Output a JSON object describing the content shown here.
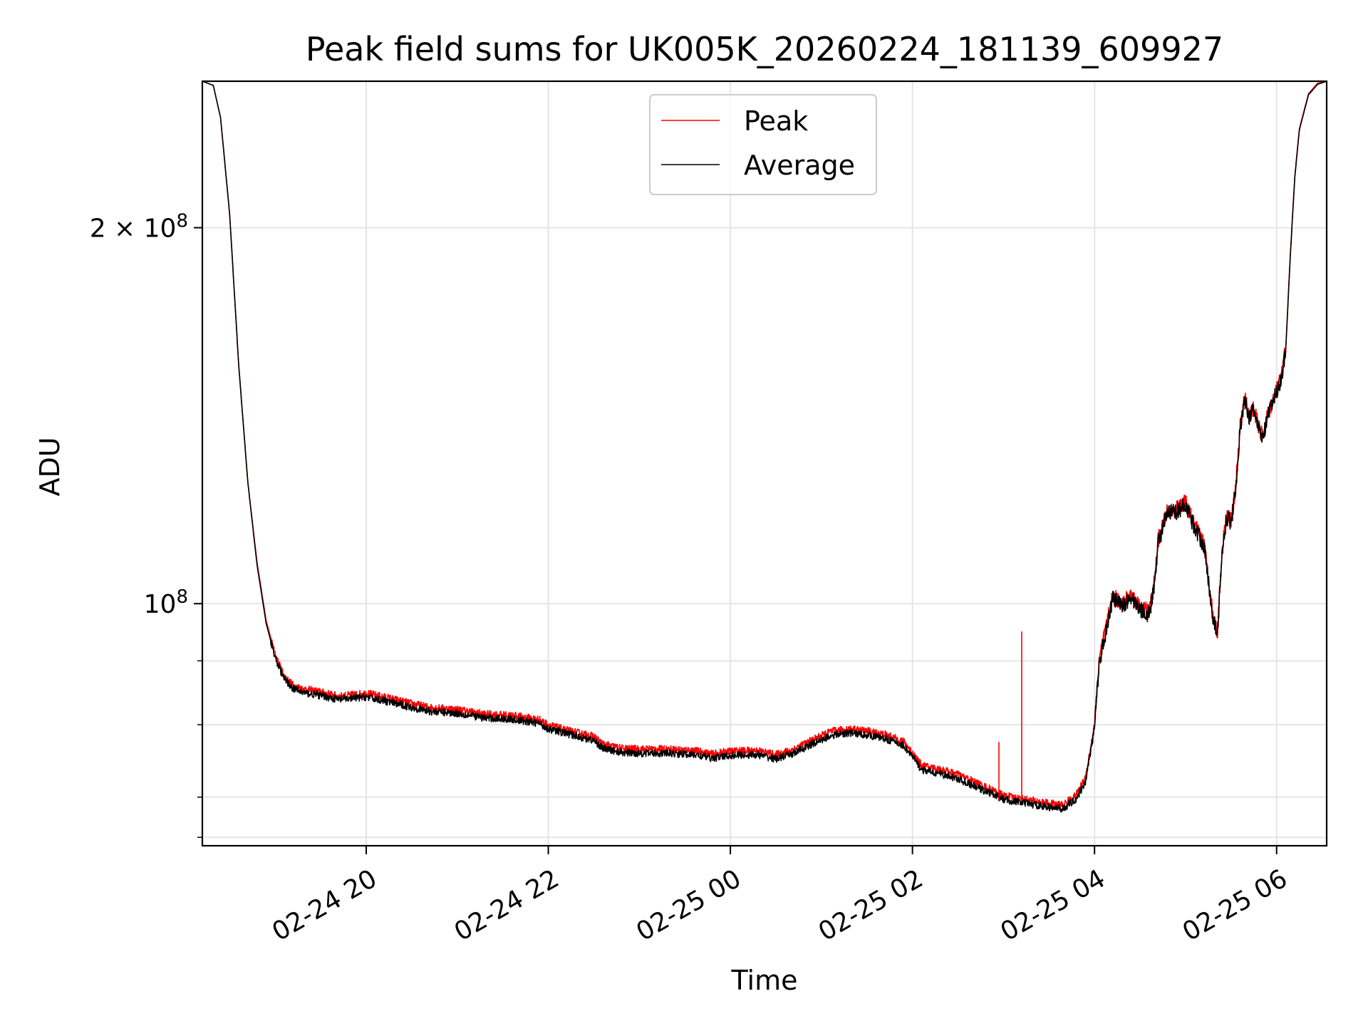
{
  "chart_data": {
    "type": "line",
    "title": "Peak field sums for UK005K_20260224_181139_609927",
    "xlabel": "Time",
    "ylabel": "ADU",
    "yscale": "log",
    "ylim": [
      64000000,
      262000000
    ],
    "xlim": [
      18.2,
      30.55
    ],
    "grid": true,
    "legend_position": "top-center",
    "x_ticks": [
      {
        "value": 20,
        "label": "02-24 20"
      },
      {
        "value": 22,
        "label": "02-24 22"
      },
      {
        "value": 24,
        "label": "02-25 00"
      },
      {
        "value": 26,
        "label": "02-25 02"
      },
      {
        "value": 28,
        "label": "02-25 04"
      },
      {
        "value": 30,
        "label": "02-25 06"
      }
    ],
    "y_major_ticks": [
      {
        "value": 100000000,
        "label": "10",
        "exp": "8"
      },
      {
        "value": 200000000,
        "label": "2 × 10",
        "exp": "8"
      }
    ],
    "y_minor_ticks": [
      65000000,
      70000000,
      80000000,
      90000000
    ],
    "series": [
      {
        "name": "Peak",
        "color": "#ff0000",
        "points": [
          [
            18.2,
            262000000
          ],
          [
            18.32,
            260000000
          ],
          [
            18.4,
            245000000
          ],
          [
            18.5,
            205000000
          ],
          [
            18.6,
            155000000
          ],
          [
            18.7,
            125000000
          ],
          [
            18.8,
            108000000
          ],
          [
            18.9,
            97000000
          ],
          [
            19.0,
            91000000
          ],
          [
            19.1,
            87500000
          ],
          [
            19.2,
            86000000
          ],
          [
            19.3,
            85500000
          ],
          [
            19.5,
            85000000
          ],
          [
            19.7,
            84300000
          ],
          [
            20.0,
            84800000
          ],
          [
            20.2,
            84200000
          ],
          [
            20.5,
            83200000
          ],
          [
            20.7,
            82600000
          ],
          [
            21.0,
            82300000
          ],
          [
            21.3,
            81600000
          ],
          [
            21.6,
            81400000
          ],
          [
            21.9,
            80800000
          ],
          [
            22.0,
            80000000
          ],
          [
            22.2,
            79200000
          ],
          [
            22.5,
            78300000
          ],
          [
            22.6,
            77200000
          ],
          [
            22.8,
            76600000
          ],
          [
            23.0,
            76500000
          ],
          [
            23.3,
            76500000
          ],
          [
            23.6,
            76300000
          ],
          [
            23.8,
            75800000
          ],
          [
            24.0,
            76200000
          ],
          [
            24.3,
            76300000
          ],
          [
            24.5,
            75700000
          ],
          [
            24.7,
            76500000
          ],
          [
            24.9,
            77800000
          ],
          [
            25.1,
            79000000
          ],
          [
            25.3,
            79400000
          ],
          [
            25.5,
            79100000
          ],
          [
            25.7,
            78600000
          ],
          [
            25.9,
            77600000
          ],
          [
            26.0,
            76000000
          ],
          [
            26.1,
            74200000
          ],
          [
            26.3,
            73700000
          ],
          [
            26.5,
            73000000
          ],
          [
            26.7,
            71900000
          ],
          [
            26.9,
            70800000
          ],
          [
            27.0,
            70200000
          ],
          [
            27.3,
            69600000
          ],
          [
            27.5,
            69200000
          ],
          [
            27.65,
            69000000
          ],
          [
            27.8,
            70300000
          ],
          [
            27.9,
            72600000
          ],
          [
            28.0,
            80000000
          ],
          [
            28.05,
            90000000
          ],
          [
            28.15,
            97500000
          ],
          [
            28.2,
            101500000
          ],
          [
            28.3,
            100000000
          ],
          [
            28.4,
            101700000
          ],
          [
            28.5,
            99500000
          ],
          [
            28.6,
            98500000
          ],
          [
            28.65,
            103000000
          ],
          [
            28.7,
            112500000
          ],
          [
            28.8,
            118500000
          ],
          [
            28.9,
            119000000
          ],
          [
            29.0,
            120500000
          ],
          [
            29.1,
            115500000
          ],
          [
            29.2,
            112000000
          ],
          [
            29.25,
            105000000
          ],
          [
            29.3,
            98000000
          ],
          [
            29.35,
            95000000
          ],
          [
            29.4,
            110000000
          ],
          [
            29.45,
            118000000
          ],
          [
            29.5,
            116500000
          ],
          [
            29.55,
            124000000
          ],
          [
            29.6,
            138500000
          ],
          [
            29.65,
            146000000
          ],
          [
            29.7,
            141500000
          ],
          [
            29.75,
            143500000
          ],
          [
            29.8,
            138500000
          ],
          [
            29.85,
            136000000
          ],
          [
            29.9,
            141500000
          ],
          [
            29.95,
            145000000
          ],
          [
            30.05,
            151500000
          ],
          [
            30.1,
            160000000
          ],
          [
            30.15,
            190000000
          ],
          [
            30.2,
            220000000
          ],
          [
            30.25,
            240000000
          ],
          [
            30.35,
            256000000
          ],
          [
            30.45,
            261000000
          ],
          [
            30.55,
            262000000
          ]
        ]
      },
      {
        "name": "Average",
        "color": "#000000",
        "points": [
          [
            18.2,
            262000000
          ],
          [
            18.32,
            260000000
          ],
          [
            18.4,
            245000000
          ],
          [
            18.5,
            205000000
          ],
          [
            18.6,
            155000000
          ],
          [
            18.7,
            125000000
          ],
          [
            18.8,
            107500000
          ],
          [
            18.9,
            96500000
          ],
          [
            19.0,
            90500000
          ],
          [
            19.1,
            87000000
          ],
          [
            19.2,
            85500000
          ],
          [
            19.3,
            84900000
          ],
          [
            19.5,
            84400000
          ],
          [
            19.7,
            83800000
          ],
          [
            20.0,
            84200000
          ],
          [
            20.2,
            83600000
          ],
          [
            20.5,
            82600000
          ],
          [
            20.7,
            82000000
          ],
          [
            21.0,
            81700000
          ],
          [
            21.3,
            81000000
          ],
          [
            21.6,
            80800000
          ],
          [
            21.9,
            80200000
          ],
          [
            22.0,
            79400000
          ],
          [
            22.2,
            78700000
          ],
          [
            22.5,
            77700000
          ],
          [
            22.6,
            76600000
          ],
          [
            22.8,
            76000000
          ],
          [
            23.0,
            75900000
          ],
          [
            23.3,
            75900000
          ],
          [
            23.6,
            75700000
          ],
          [
            23.8,
            75200000
          ],
          [
            24.0,
            75600000
          ],
          [
            24.3,
            75700000
          ],
          [
            24.5,
            75100000
          ],
          [
            24.7,
            75900000
          ],
          [
            24.9,
            77200000
          ],
          [
            25.1,
            78400000
          ],
          [
            25.3,
            78800000
          ],
          [
            25.5,
            78500000
          ],
          [
            25.7,
            78000000
          ],
          [
            25.9,
            77000000
          ],
          [
            26.0,
            75400000
          ],
          [
            26.1,
            73600000
          ],
          [
            26.3,
            73100000
          ],
          [
            26.5,
            72400000
          ],
          [
            26.7,
            71300000
          ],
          [
            26.9,
            70300000
          ],
          [
            27.0,
            69700000
          ],
          [
            27.3,
            69100000
          ],
          [
            27.5,
            68700000
          ],
          [
            27.65,
            68500000
          ],
          [
            27.8,
            69800000
          ],
          [
            27.9,
            72000000
          ],
          [
            28.0,
            79500000
          ],
          [
            28.05,
            89500000
          ],
          [
            28.15,
            97000000
          ],
          [
            28.2,
            101000000
          ],
          [
            28.3,
            99500000
          ],
          [
            28.4,
            101200000
          ],
          [
            28.5,
            99000000
          ],
          [
            28.6,
            98000000
          ],
          [
            28.65,
            102500000
          ],
          [
            28.7,
            112000000
          ],
          [
            28.8,
            118000000
          ],
          [
            28.9,
            118500000
          ],
          [
            29.0,
            120000000
          ],
          [
            29.1,
            115000000
          ],
          [
            29.2,
            111500000
          ],
          [
            29.25,
            104500000
          ],
          [
            29.3,
            97500000
          ],
          [
            29.35,
            94500000
          ],
          [
            29.4,
            109500000
          ],
          [
            29.45,
            117500000
          ],
          [
            29.5,
            116000000
          ],
          [
            29.55,
            123500000
          ],
          [
            29.6,
            138000000
          ],
          [
            29.65,
            145500000
          ],
          [
            29.7,
            141000000
          ],
          [
            29.75,
            143000000
          ],
          [
            29.8,
            138000000
          ],
          [
            29.85,
            135500000
          ],
          [
            29.9,
            141000000
          ],
          [
            29.95,
            144500000
          ],
          [
            30.05,
            151000000
          ],
          [
            30.1,
            159500000
          ],
          [
            30.15,
            189500000
          ],
          [
            30.2,
            219500000
          ],
          [
            30.25,
            239500000
          ],
          [
            30.35,
            255500000
          ],
          [
            30.45,
            260500000
          ],
          [
            30.55,
            262000000
          ]
        ]
      }
    ],
    "annotations": [
      {
        "x": 27.2,
        "y": 95000000,
        "type": "spike",
        "series": "Peak"
      },
      {
        "x": 26.95,
        "y": 77500000,
        "type": "spike",
        "series": "Peak"
      }
    ]
  }
}
